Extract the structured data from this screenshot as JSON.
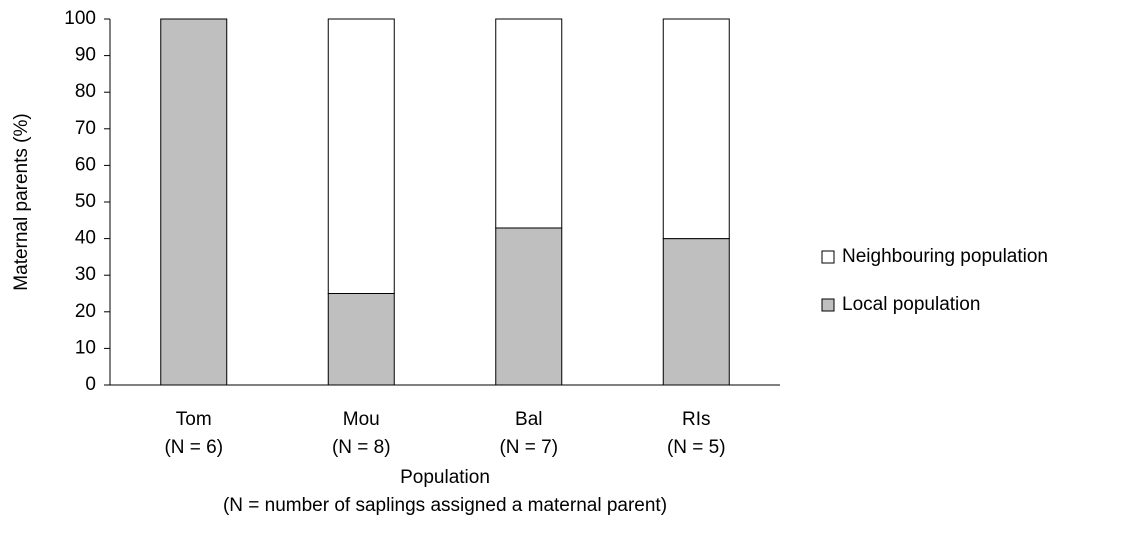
{
  "chart_data": {
    "type": "stacked_bar",
    "ylabel": "Maternal parents (%)",
    "xlabel": [
      "Population",
      "(N = number of saplings assigned a maternal parent)"
    ],
    "categories": [
      [
        "Tom",
        "(N = 6)"
      ],
      [
        "Mou",
        "(N = 8)"
      ],
      [
        "Bal",
        "(N = 7)"
      ],
      [
        "RIs",
        "(N = 5)"
      ]
    ],
    "series": [
      {
        "name": "Local population",
        "color": "#bfbfbf",
        "values": [
          100,
          25,
          42.9,
          40
        ]
      },
      {
        "name": "Neighbouring population",
        "color": "#ffffff",
        "values": [
          0,
          75,
          57.1,
          60
        ]
      }
    ],
    "ylim": [
      0,
      100
    ],
    "yticks": [
      0,
      10,
      20,
      30,
      40,
      50,
      60,
      70,
      80,
      90,
      100
    ],
    "legend": "right"
  }
}
